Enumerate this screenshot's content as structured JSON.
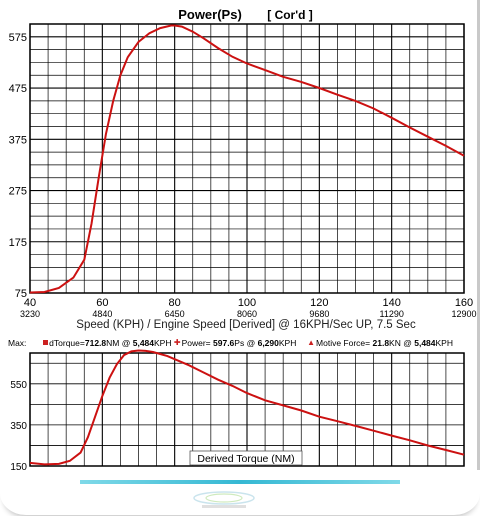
{
  "top_title": "Power(Ps)",
  "top_subtitle": "[ Cor'd ]",
  "x_axis_label": "Speed (KPH) / Engine Speed [Derived] @ 16KPH/Sec UP, 7.5 Sec",
  "max_label": "Max:",
  "max_items": [
    {
      "name": "dTorque=",
      "value": "712.8",
      "unit": "NM @",
      "at": "5,484",
      "at_unit": "KPH",
      "marker": "square"
    },
    {
      "name": "Power=",
      "value": "597.6",
      "unit": "Ps @",
      "at": "6,290",
      "at_unit": "KPH",
      "marker": "cross"
    },
    {
      "name": "Motive Force=",
      "value": "21.8",
      "unit": "KN @",
      "at": "5,484",
      "at_unit": "KPH",
      "marker": "triangle"
    }
  ],
  "bottom_chart_label": "Derived Torque (NM)",
  "colors": {
    "curve": "#cc1111",
    "grid": "#000000",
    "background": "#ffffff",
    "accent_bar": "#35b8d3"
  },
  "chart_data": [
    {
      "type": "line",
      "title": "Power(Ps)",
      "subtitle": "[ Cor'd ]",
      "xlabel": "Speed (KPH) / Engine Speed [Derived] @ 16KPH/Sec UP, 7.5 Sec",
      "ylabel": "",
      "xlim": [
        40,
        160
      ],
      "ylim": [
        75,
        600
      ],
      "x_ticks": [
        40,
        60,
        80,
        100,
        120,
        140,
        160
      ],
      "x_secondary_ticks": [
        "3230",
        "4840",
        "6450",
        "8060",
        "9680",
        "11290",
        "12900"
      ],
      "y_ticks": [
        75,
        175,
        275,
        375,
        475,
        575
      ],
      "grid": true,
      "series": [
        {
          "x": [
            40,
            44,
            48,
            52,
            55,
            57,
            59,
            61,
            63,
            65,
            67,
            70,
            73,
            76,
            79,
            80,
            82,
            85,
            88,
            92,
            96,
            100,
            105,
            110,
            115,
            120,
            125,
            130,
            135,
            140,
            145,
            150,
            155,
            160
          ],
          "y": [
            76,
            77,
            85,
            105,
            140,
            210,
            300,
            385,
            450,
            500,
            535,
            565,
            582,
            592,
            597,
            597,
            595,
            585,
            572,
            553,
            536,
            523,
            510,
            497,
            487,
            475,
            462,
            450,
            435,
            417,
            398,
            380,
            362,
            343
          ]
        }
      ]
    },
    {
      "type": "line",
      "title": "",
      "label": "Derived Torque (NM)",
      "xlim": [
        40,
        160
      ],
      "ylim": [
        150,
        700
      ],
      "y_ticks": [
        150,
        350,
        550
      ],
      "x_ticks": [
        40,
        60,
        80,
        100,
        120,
        140,
        160
      ],
      "grid": true,
      "series": [
        {
          "x": [
            40,
            44,
            48,
            51,
            54,
            56,
            58,
            60,
            62,
            64,
            66,
            68,
            70,
            72,
            74,
            76,
            78,
            80,
            84,
            88,
            92,
            96,
            100,
            105,
            110,
            115,
            120,
            125,
            130,
            135,
            140,
            145,
            150,
            155,
            160
          ],
          "y": [
            165,
            158,
            160,
            175,
            215,
            290,
            390,
            490,
            580,
            645,
            690,
            708,
            712,
            710,
            705,
            695,
            685,
            670,
            640,
            605,
            570,
            540,
            505,
            470,
            445,
            420,
            390,
            368,
            345,
            322,
            298,
            275,
            250,
            228,
            205
          ]
        }
      ]
    }
  ]
}
